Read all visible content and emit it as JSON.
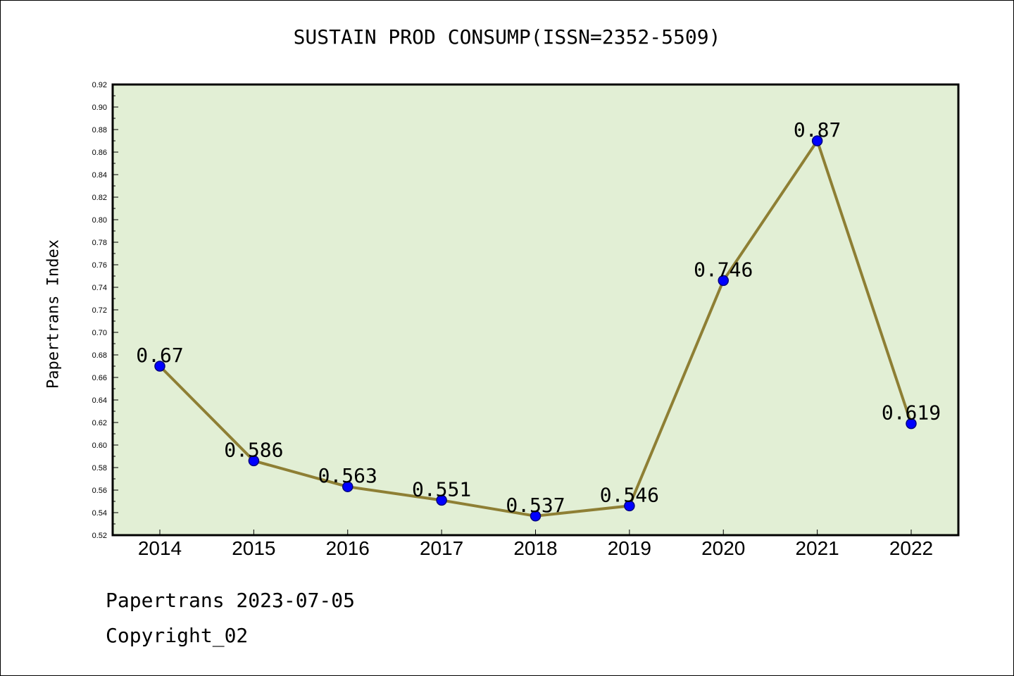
{
  "chart_data": {
    "type": "line",
    "title": "SUSTAIN PROD CONSUMP(ISSN=2352-5509)",
    "xlabel": "",
    "ylabel": "Papertrans Index",
    "categories": [
      "2014",
      "2015",
      "2016",
      "2017",
      "2018",
      "2019",
      "2020",
      "2021",
      "2022"
    ],
    "series": [
      {
        "values": [
          0.67,
          0.586,
          0.563,
          0.551,
          0.537,
          0.546,
          0.746,
          0.87,
          0.619
        ],
        "data_labels": [
          "0.67",
          "0.586",
          "0.563",
          "0.551",
          "0.537",
          "0.546",
          "0.746",
          "0.87",
          "0.619"
        ]
      }
    ],
    "ylim": [
      0.52,
      0.92
    ],
    "yticks": [
      "0.52",
      "0.54",
      "0.56",
      "0.58",
      "0.60",
      "0.62",
      "0.64",
      "0.66",
      "0.68",
      "0.70",
      "0.72",
      "0.74",
      "0.76",
      "0.78",
      "0.80",
      "0.82",
      "0.84",
      "0.86",
      "0.88",
      "0.90",
      "0.92"
    ],
    "grid": false,
    "legend": "none"
  },
  "colors": {
    "plot_background": "#e2efd5",
    "line": "#8e7f34",
    "marker_fill": "#0000ff",
    "marker_stroke": "#000080",
    "text": "#000000"
  },
  "footer": {
    "date_line": "Papertrans 2023-07-05",
    "copyright": "Copyright_02"
  }
}
